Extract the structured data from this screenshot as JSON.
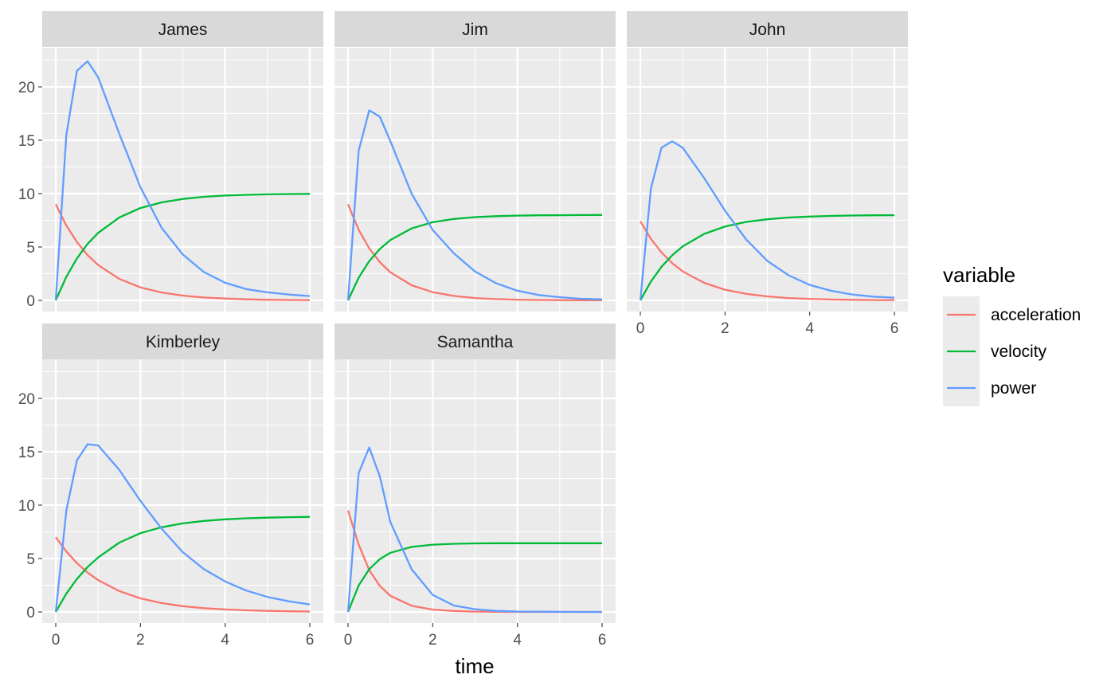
{
  "chart_data": {
    "type": "line",
    "facet_by": "name",
    "xlabel": "time",
    "ylabel": "",
    "xlim": [
      0,
      6
    ],
    "ylim": [
      0,
      22.5
    ],
    "x_ticks": [
      0,
      2,
      4,
      6
    ],
    "y_ticks": [
      0,
      5,
      10,
      15,
      20
    ],
    "grid": true,
    "legend": {
      "title": "variable",
      "position": "right",
      "entries": [
        {
          "label": "acceleration",
          "color": "#F8766D"
        },
        {
          "label": "velocity",
          "color": "#00BA38"
        },
        {
          "label": "power",
          "color": "#619CFF"
        }
      ]
    },
    "x": [
      0,
      0.25,
      0.5,
      0.75,
      1,
      1.5,
      2,
      2.5,
      3,
      3.5,
      4,
      4.5,
      5,
      5.5,
      6
    ],
    "panels": [
      {
        "name": "James",
        "series": [
          {
            "name": "acceleration",
            "values": [
              9.0,
              7.01,
              5.46,
              4.25,
              3.31,
              2.01,
              1.22,
              0.74,
              0.45,
              0.27,
              0.17,
              0.1,
              0.06,
              0.04,
              0.02
            ]
          },
          {
            "name": "velocity",
            "values": [
              0.0,
              2.21,
              3.93,
              5.28,
              6.32,
              7.77,
              8.65,
              9.18,
              9.5,
              9.7,
              9.82,
              9.89,
              9.93,
              9.96,
              9.98
            ]
          },
          {
            "name": "power",
            "values": [
              0.0,
              15.5,
              21.5,
              22.4,
              20.9,
              15.6,
              10.6,
              6.8,
              4.3,
              2.65,
              1.65,
              1.05,
              0.75,
              0.55,
              0.4
            ]
          }
        ]
      },
      {
        "name": "Jim",
        "series": [
          {
            "name": "acceleration",
            "values": [
              9.0,
              6.62,
              4.87,
              3.58,
              2.63,
              1.42,
              0.77,
              0.42,
              0.22,
              0.12,
              0.07,
              0.04,
              0.02,
              0.01,
              0.01
            ]
          },
          {
            "name": "velocity",
            "values": [
              0.0,
              2.12,
              3.67,
              4.81,
              5.66,
              6.74,
              7.32,
              7.63,
              7.8,
              7.89,
              7.94,
              7.97,
              7.98,
              7.99,
              8.0
            ]
          },
          {
            "name": "power",
            "values": [
              0.0,
              14.0,
              17.8,
              17.2,
              14.9,
              10.0,
              6.6,
              4.4,
              2.7,
              1.6,
              0.9,
              0.5,
              0.3,
              0.15,
              0.1
            ]
          }
        ]
      },
      {
        "name": "John",
        "series": [
          {
            "name": "acceleration",
            "values": [
              7.4,
              5.76,
              4.49,
              3.5,
              2.72,
              1.65,
              1.0,
              0.61,
              0.37,
              0.22,
              0.14,
              0.08,
              0.05,
              0.03,
              0.02
            ]
          },
          {
            "name": "velocity",
            "values": [
              0.0,
              1.77,
              3.15,
              4.22,
              5.06,
              6.22,
              6.92,
              7.35,
              7.6,
              7.76,
              7.85,
              7.91,
              7.95,
              7.97,
              7.98
            ]
          },
          {
            "name": "power",
            "values": [
              0.0,
              10.5,
              14.3,
              14.9,
              14.3,
              11.5,
              8.4,
              5.7,
              3.7,
              2.35,
              1.45,
              0.9,
              0.55,
              0.35,
              0.25
            ]
          }
        ]
      },
      {
        "name": "Kimberley",
        "series": [
          {
            "name": "acceleration",
            "values": [
              7.0,
              5.66,
              4.57,
              3.69,
              2.98,
              1.95,
              1.27,
              0.83,
              0.54,
              0.35,
              0.23,
              0.15,
              0.1,
              0.06,
              0.04
            ]
          },
          {
            "name": "velocity",
            "values": [
              0.0,
              1.71,
              3.09,
              4.2,
              5.1,
              6.49,
              7.37,
              7.93,
              8.29,
              8.52,
              8.67,
              8.77,
              8.83,
              8.87,
              8.9
            ]
          },
          {
            "name": "power",
            "values": [
              0.0,
              9.5,
              14.2,
              15.7,
              15.6,
              13.3,
              10.4,
              7.8,
              5.6,
              4.0,
              2.85,
              2.0,
              1.4,
              1.0,
              0.7
            ]
          }
        ]
      },
      {
        "name": "Samantha",
        "series": [
          {
            "name": "acceleration",
            "values": [
              9.5,
              6.32,
              3.92,
              2.43,
              1.51,
              0.58,
              0.22,
              0.09,
              0.03,
              0.01,
              0.0,
              0.0,
              0.0,
              0.0,
              0.0
            ]
          },
          {
            "name": "velocity",
            "values": [
              0.0,
              2.47,
              4.0,
              4.95,
              5.54,
              6.09,
              6.3,
              6.38,
              6.42,
              6.43,
              6.43,
              6.43,
              6.43,
              6.43,
              6.43
            ]
          },
          {
            "name": "power",
            "values": [
              0.0,
              13.0,
              15.4,
              12.7,
              8.4,
              4.0,
              1.6,
              0.6,
              0.25,
              0.1,
              0.04,
              0.02,
              0.01,
              0.0,
              0.0
            ]
          }
        ]
      }
    ]
  }
}
